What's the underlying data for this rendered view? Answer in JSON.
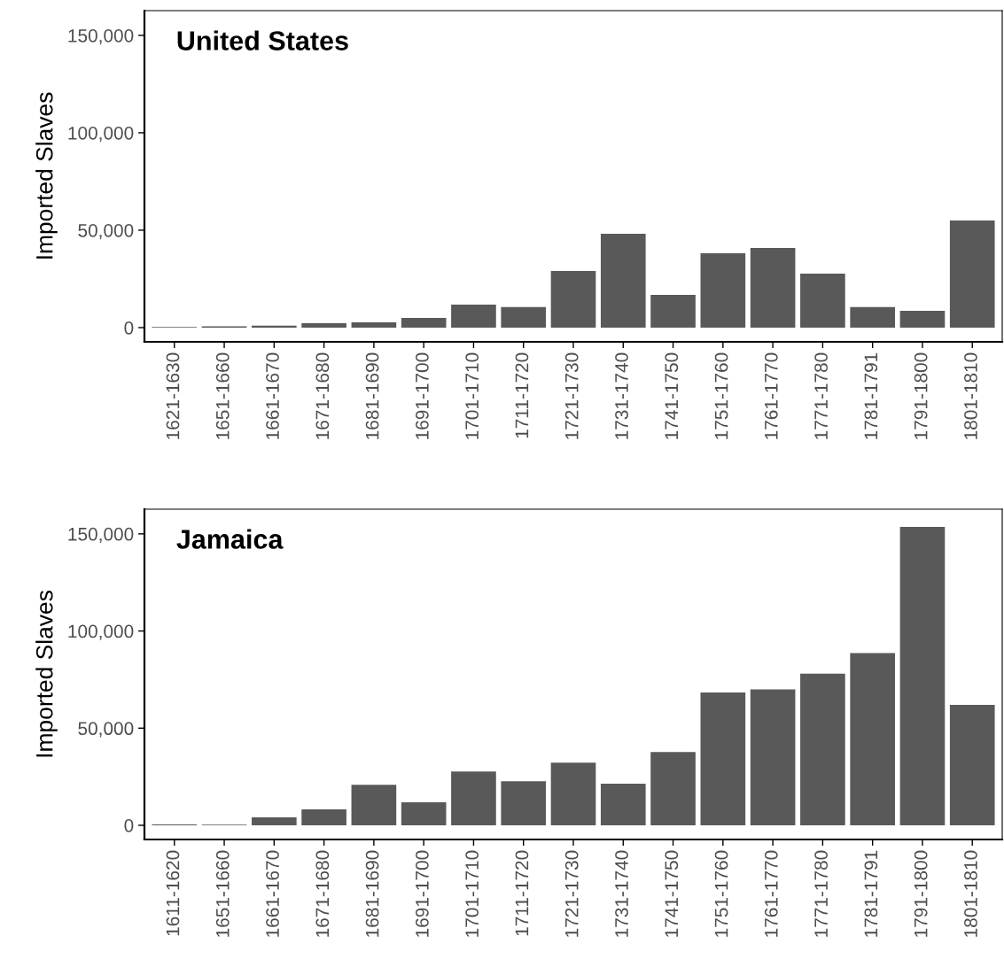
{
  "chart_data": [
    {
      "type": "bar",
      "title": "United States",
      "ylabel": "Imported Slaves",
      "categories": [
        "1621-1630",
        "1651-1660",
        "1661-1670",
        "1671-1680",
        "1681-1690",
        "1691-1700",
        "1701-1710",
        "1711-1720",
        "1721-1730",
        "1731-1740",
        "1741-1750",
        "1751-1760",
        "1761-1770",
        "1771-1780",
        "1781-1791",
        "1791-1800",
        "1801-1810"
      ],
      "values": [
        300,
        600,
        1000,
        2300,
        2700,
        5000,
        11800,
        10500,
        29100,
        48200,
        16800,
        38200,
        40900,
        27700,
        10500,
        8600,
        55000
      ],
      "color": "#595959",
      "ylim": [
        -7300,
        162700
      ],
      "yticks": [
        0,
        {
          "value": 50000,
          "label": "50,000"
        },
        {
          "value": 100000,
          "label": "100,000"
        },
        {
          "value": 150000,
          "label": "150,000"
        }
      ],
      "grid": false
    },
    {
      "type": "bar",
      "title": "Jamaica",
      "ylabel": "Imported Slaves",
      "categories": [
        "1611-1620",
        "1651-1660",
        "1661-1670",
        "1671-1680",
        "1681-1690",
        "1691-1700",
        "1701-1710",
        "1711-1720",
        "1721-1730",
        "1731-1740",
        "1741-1750",
        "1751-1760",
        "1761-1770",
        "1771-1780",
        "1781-1791",
        "1791-1800",
        "1801-1810"
      ],
      "values": [
        500,
        300,
        4100,
        8200,
        20900,
        11800,
        27700,
        22700,
        32200,
        21400,
        37700,
        68300,
        70000,
        78000,
        88600,
        153600,
        62000
      ],
      "color": "#595959",
      "ylim": [
        -7300,
        162700
      ],
      "yticks": [
        0,
        {
          "value": 50000,
          "label": "50,000"
        },
        {
          "value": 100000,
          "label": "100,000"
        },
        {
          "value": 150000,
          "label": "150,000"
        }
      ],
      "grid": false
    }
  ]
}
